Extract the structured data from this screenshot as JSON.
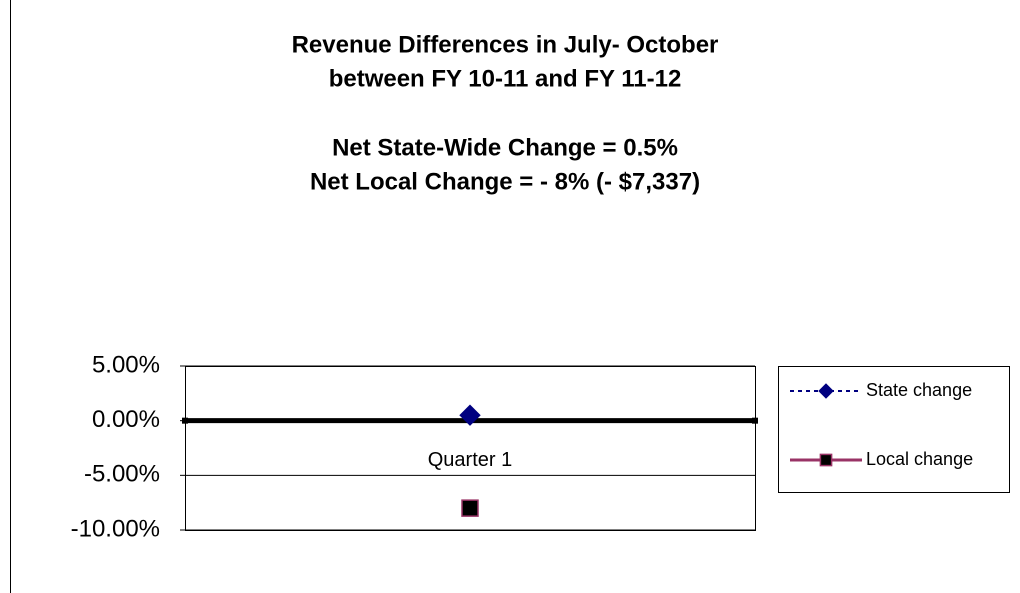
{
  "chart_data": {
    "type": "line",
    "title": [
      "Revenue Differences in July- October",
      "between FY 10-11 and FY 11-12",
      "Net State-Wide Change = 0.5%",
      "Net Local Change = - 8%  (- $7,337)"
    ],
    "categories": [
      "Quarter 1"
    ],
    "series": [
      {
        "name": "State change",
        "color": "#000080",
        "marker": "diamond",
        "marker_fill": "#000080",
        "dash": true,
        "values": [
          0.5
        ]
      },
      {
        "name": "Local change",
        "color": "#993366",
        "marker": "square",
        "marker_fill": "#000000",
        "dash": false,
        "values": [
          -8
        ]
      }
    ],
    "ylim": [
      -10,
      5
    ],
    "yticks": [
      {
        "value": -10,
        "label": "-10.00%"
      },
      {
        "value": -5,
        "label": "-5.00%"
      },
      {
        "value": 0,
        "label": "0.00%"
      },
      {
        "value": 5,
        "label": "5.00%"
      }
    ],
    "grid": true,
    "legend": "right"
  }
}
